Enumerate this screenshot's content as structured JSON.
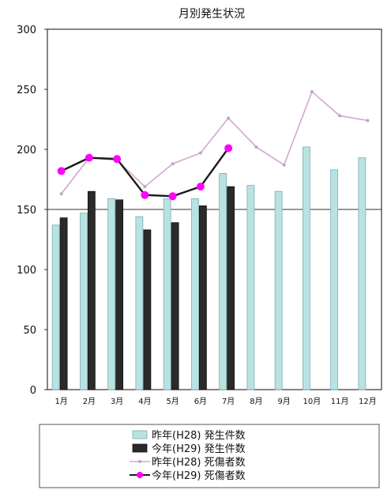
{
  "chart_data": {
    "type": "bar",
    "title": "月別発生状況",
    "categories": [
      "1月",
      "2月",
      "3月",
      "4月",
      "5月",
      "6月",
      "7月",
      "8月",
      "9月",
      "10月",
      "11月",
      "12月"
    ],
    "ylim": [
      0,
      300
    ],
    "yticks": [
      0,
      50,
      100,
      150,
      200,
      250,
      300
    ],
    "reference_line": 150,
    "grid": false,
    "legend_position": "bottom",
    "series": [
      {
        "name": "昨年(H28) 発生件数",
        "kind": "bar",
        "color": "#b9e2e2",
        "values": [
          137,
          147,
          159,
          144,
          159,
          159,
          180,
          170,
          165,
          202,
          183,
          193
        ]
      },
      {
        "name": "今年(H29) 発生件数",
        "kind": "bar",
        "color": "#2a2a2a",
        "values": [
          143,
          165,
          158,
          133,
          139,
          153,
          169,
          null,
          null,
          null,
          null,
          null
        ]
      },
      {
        "name": "昨年(H28) 死傷者数",
        "kind": "line",
        "color": "#d4a6cf",
        "values": [
          163,
          193,
          191,
          169,
          188,
          197,
          226,
          202,
          187,
          248,
          228,
          224
        ]
      },
      {
        "name": "今年(H29) 死傷者数",
        "kind": "line",
        "color": "#ff00ff",
        "values": [
          182,
          193,
          192,
          162,
          161,
          169,
          201,
          null,
          null,
          null,
          null,
          null
        ]
      }
    ]
  }
}
